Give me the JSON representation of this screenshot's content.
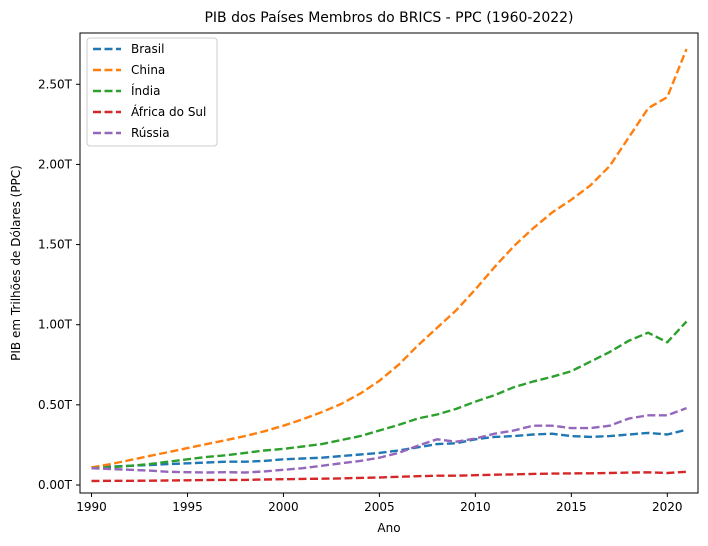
{
  "chart_data": {
    "type": "line",
    "title": "PIB dos Países Membros do BRICS - PPC (1960-2022)",
    "xlabel": "Ano",
    "ylabel": "PIB em Trilhões de Dólares (PPC)",
    "xlim": [
      1989.4,
      2021.6
    ],
    "ylim": [
      -0.05,
      2.82
    ],
    "x_ticks": [
      1990,
      1995,
      2000,
      2005,
      2010,
      2015,
      2020
    ],
    "y_ticks": [
      {
        "value": 0.0,
        "label": "0.00T"
      },
      {
        "value": 0.5,
        "label": "0.50T"
      },
      {
        "value": 1.0,
        "label": "1.00T"
      },
      {
        "value": 1.5,
        "label": "1.50T"
      },
      {
        "value": 2.0,
        "label": "2.00T"
      },
      {
        "value": 2.5,
        "label": "2.50T"
      }
    ],
    "grid": false,
    "legend_position": "top-left",
    "line_style": "dashed",
    "x": [
      1990,
      1991,
      1992,
      1993,
      1994,
      1995,
      1996,
      1997,
      1998,
      1999,
      2000,
      2001,
      2002,
      2003,
      2004,
      2005,
      2006,
      2007,
      2008,
      2009,
      2010,
      2011,
      2012,
      2013,
      2014,
      2015,
      2016,
      2017,
      2018,
      2019,
      2020,
      2021
    ],
    "series": [
      {
        "name": "Brasil",
        "color": "#1f77b4",
        "values": [
          0.11,
          0.115,
          0.12,
          0.125,
          0.13,
          0.135,
          0.14,
          0.145,
          0.145,
          0.15,
          0.16,
          0.165,
          0.17,
          0.18,
          0.19,
          0.2,
          0.215,
          0.235,
          0.255,
          0.26,
          0.285,
          0.3,
          0.305,
          0.315,
          0.32,
          0.305,
          0.3,
          0.305,
          0.315,
          0.325,
          0.315,
          0.345
        ]
      },
      {
        "name": "China",
        "color": "#ff7f0e",
        "values": [
          0.11,
          0.13,
          0.155,
          0.18,
          0.205,
          0.23,
          0.255,
          0.28,
          0.305,
          0.335,
          0.37,
          0.41,
          0.455,
          0.505,
          0.57,
          0.65,
          0.75,
          0.87,
          0.98,
          1.09,
          1.22,
          1.36,
          1.49,
          1.6,
          1.7,
          1.78,
          1.87,
          1.99,
          2.17,
          2.35,
          2.42,
          2.72
        ]
      },
      {
        "name": "Índia",
        "color": "#2ca02c",
        "values": [
          0.105,
          0.11,
          0.12,
          0.13,
          0.145,
          0.16,
          0.175,
          0.185,
          0.2,
          0.215,
          0.225,
          0.24,
          0.255,
          0.28,
          0.305,
          0.34,
          0.375,
          0.415,
          0.44,
          0.475,
          0.52,
          0.56,
          0.61,
          0.645,
          0.675,
          0.71,
          0.77,
          0.83,
          0.9,
          0.95,
          0.89,
          1.02
        ]
      },
      {
        "name": "África do Sul",
        "color": "#d62728",
        "values": [
          0.025,
          0.026,
          0.026,
          0.027,
          0.028,
          0.029,
          0.031,
          0.032,
          0.032,
          0.034,
          0.036,
          0.038,
          0.039,
          0.041,
          0.044,
          0.047,
          0.051,
          0.055,
          0.058,
          0.058,
          0.061,
          0.064,
          0.066,
          0.069,
          0.071,
          0.072,
          0.073,
          0.075,
          0.077,
          0.079,
          0.075,
          0.082
        ]
      },
      {
        "name": "Rússia",
        "color": "#9467bd",
        "values": [
          0.105,
          0.1,
          0.095,
          0.09,
          0.082,
          0.08,
          0.078,
          0.08,
          0.078,
          0.085,
          0.095,
          0.105,
          0.12,
          0.135,
          0.15,
          0.17,
          0.2,
          0.245,
          0.285,
          0.27,
          0.29,
          0.32,
          0.34,
          0.37,
          0.37,
          0.355,
          0.355,
          0.37,
          0.415,
          0.435,
          0.435,
          0.48
        ]
      }
    ]
  }
}
